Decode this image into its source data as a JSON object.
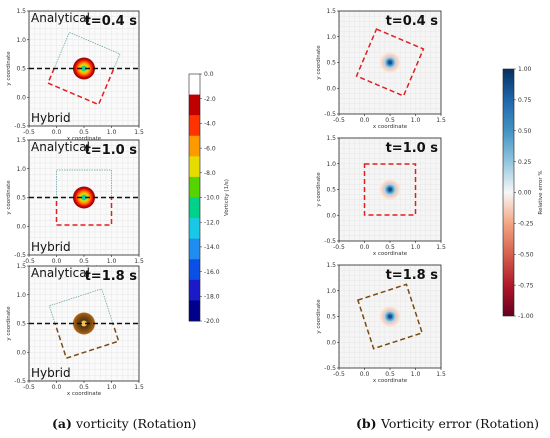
{
  "figure": {
    "caption_left": {
      "tag": "(a)",
      "text": "vorticity (Rotation)"
    },
    "caption_right": {
      "tag": "(b)",
      "text": "Vorticity error (Rotation)"
    }
  },
  "chart_data": [
    {
      "type": "heatmap",
      "panel": "left-1",
      "time_label": "t=0.4 s",
      "labels": [
        "Analytical",
        "Hybrid"
      ],
      "xlabel": "x coordinate",
      "ylabel": "y coordinate",
      "xlim": [
        -0.5,
        1.5
      ],
      "ylim": [
        -0.5,
        1.5
      ],
      "xticks": [
        "-0.5",
        "0.0",
        "0.5",
        "1.0",
        "1.5"
      ],
      "yticks": [
        "-0.5",
        "0.0",
        "0.5",
        "1.0",
        "1.5"
      ],
      "vortex_center": [
        0.5,
        0.5
      ],
      "rotation_deg": 23,
      "divider_y": 0.5
    },
    {
      "type": "heatmap",
      "panel": "left-2",
      "time_label": "t=1.0 s",
      "labels": [
        "Analytical",
        "Hybrid"
      ],
      "xlabel": "x coordinate",
      "ylabel": "y coordinate",
      "xlim": [
        -0.5,
        1.5
      ],
      "ylim": [
        -0.5,
        1.5
      ],
      "xticks": [
        "-0.5",
        "0.0",
        "0.5",
        "1.0",
        "1.5"
      ],
      "yticks": [
        "-0.5",
        "0.0",
        "0.5",
        "1.0",
        "1.5"
      ],
      "vortex_center": [
        0.5,
        0.5
      ],
      "rotation_deg": 0,
      "divider_y": 0.5
    },
    {
      "type": "heatmap",
      "panel": "left-3",
      "time_label": "t=1.8 s",
      "labels": [
        "Analytical",
        "Hybrid"
      ],
      "xlabel": "x coordinate",
      "ylabel": "y coordinate",
      "xlim": [
        -0.5,
        1.5
      ],
      "ylim": [
        -0.5,
        1.5
      ],
      "xticks": [
        "-0.5",
        "0.0",
        "0.5",
        "1.0",
        "1.5"
      ],
      "yticks": [
        "-0.5",
        "0.0",
        "0.5",
        "1.0",
        "1.5"
      ],
      "vortex_center": [
        0.5,
        0.5
      ],
      "rotation_deg": -18,
      "divider_y": 0.5
    },
    {
      "type": "heatmap",
      "panel": "right-1",
      "time_label": "t=0.4 s",
      "xlabel": "x coordinate",
      "ylabel": "y coordinate",
      "xlim": [
        -0.5,
        1.5
      ],
      "ylim": [
        -0.5,
        1.5
      ],
      "xticks": [
        "-0.5",
        "0.0",
        "0.5",
        "1.0",
        "1.5"
      ],
      "yticks": [
        "-0.5",
        "0.0",
        "0.5",
        "1.0",
        "1.5"
      ],
      "vortex_center": [
        0.5,
        0.5
      ],
      "rotation_deg": 23
    },
    {
      "type": "heatmap",
      "panel": "right-2",
      "time_label": "t=1.0 s",
      "xlabel": "x coordinate",
      "ylabel": "y coordinate",
      "xlim": [
        -0.5,
        1.5
      ],
      "ylim": [
        -0.5,
        1.5
      ],
      "xticks": [
        "-0.5",
        "0.0",
        "0.5",
        "1.0",
        "1.5"
      ],
      "yticks": [
        "-0.5",
        "0.0",
        "0.5",
        "1.0",
        "1.5"
      ],
      "vortex_center": [
        0.5,
        0.5
      ],
      "rotation_deg": 0
    },
    {
      "type": "heatmap",
      "panel": "right-3",
      "time_label": "t=1.8 s",
      "xlabel": "x coordinate",
      "ylabel": "y coordinate",
      "xlim": [
        -0.5,
        1.5
      ],
      "ylim": [
        -0.5,
        1.5
      ],
      "xticks": [
        "-0.5",
        "0.0",
        "0.5",
        "1.0",
        "1.5"
      ],
      "yticks": [
        "-0.5",
        "0.0",
        "0.5",
        "1.0",
        "1.5"
      ],
      "vortex_center": [
        0.5,
        0.5
      ],
      "rotation_deg": -18
    }
  ],
  "colorbar_vorticity": {
    "label": "Vorticity (1/s)",
    "range": [
      -20.0,
      0.0
    ],
    "ticks": [
      "0.0",
      "-2.0",
      "-4.0",
      "-6.0",
      "-8.0",
      "-10.0",
      "-12.0",
      "-14.0",
      "-16.0",
      "-18.0",
      "-20.0"
    ],
    "colors": [
      "#ffffff",
      "#c00000",
      "#ff3300",
      "#ff9900",
      "#e6dc00",
      "#55d400",
      "#00d28c",
      "#19c8e6",
      "#1e8cf0",
      "#0a50e6",
      "#1a1ac8",
      "#00008c"
    ]
  },
  "colorbar_error": {
    "label": "Relative error %",
    "range": [
      -1.0,
      1.0
    ],
    "ticks": [
      "1.00",
      "0.75",
      "0.50",
      "0.25",
      "0.00",
      "-0.25",
      "-0.50",
      "-0.75",
      "-1.00"
    ],
    "colors": [
      "#053061",
      "#2166ac",
      "#4393c3",
      "#92c5de",
      "#f7f7f7",
      "#f4a582",
      "#d6604d",
      "#b2182b",
      "#67001f"
    ]
  },
  "colors": {
    "box_analytical": "#5aa0a0",
    "box_hybrid": "#e02020",
    "box_hybrid_late": "#7a4a10",
    "grid": "#e6e6e6"
  }
}
